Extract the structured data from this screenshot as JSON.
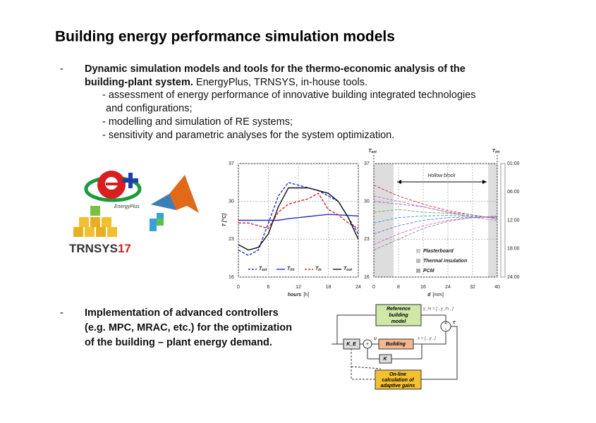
{
  "title": "Building energy performance simulation models",
  "bullet1": {
    "marker": "-",
    "line1": "Dynamic simulation models and tools for the thermo-economic analysis of the",
    "line2_bold": "building-plant system.",
    "line2_rest": " EnergyPlus, TRNSYS, in-house tools.",
    "sub": [
      "- assessment of energy performance of innovative building integrated technologies",
      "and configurations;",
      "- modelling and simulation of RE systems;",
      "- sensitivity and parametric analyses for the system optimization."
    ]
  },
  "logos": {
    "energyplus": "EnergyPlus",
    "trnsys": "TRNSYS",
    "trnsys_version": "17"
  },
  "left_chart": {
    "x_label": "hours",
    "x_unit": "[h]",
    "y_label": "T [°C]",
    "x": [
      0,
      2,
      4,
      6,
      8,
      10,
      12,
      14,
      16,
      18,
      20,
      22,
      24
    ],
    "xlim": [
      0,
      24
    ],
    "xticks": [
      0,
      6,
      12,
      18,
      24
    ],
    "ylim": [
      16,
      37
    ],
    "yticks": [
      16,
      23,
      30,
      37
    ],
    "series": [
      {
        "name": "T",
        "subscript": "ext",
        "color": "#2233cc",
        "dash": true,
        "values": [
          21,
          20,
          21,
          26,
          31,
          33.5,
          33,
          32.5,
          32,
          31,
          30,
          27,
          24
        ]
      },
      {
        "name": "T",
        "subscript": "int",
        "color": "#2233cc",
        "dash": false,
        "values": [
          26.5,
          26.5,
          26.5,
          26.5,
          26.5,
          26.8,
          27,
          27.2,
          27.4,
          27.6,
          27.5,
          27.4,
          27.3
        ]
      },
      {
        "name": "T",
        "subscript": "in",
        "color": "#dd2222",
        "dash": true,
        "values": [
          26,
          26,
          25.5,
          25,
          28,
          29.5,
          30,
          30.5,
          31.5,
          28.5,
          27.5,
          26,
          25
        ]
      },
      {
        "name": "T",
        "subscript": "out",
        "color": "#111111",
        "dash": false,
        "values": [
          22,
          21,
          21.5,
          24,
          29,
          32.5,
          32.5,
          32.5,
          32,
          31.5,
          30,
          27,
          23
        ]
      }
    ]
  },
  "right_chart": {
    "x_label": "d",
    "x_unit": "[mm]",
    "left_label": {
      "name": "T",
      "subscript": "ext"
    },
    "right_label": {
      "name": "T",
      "subscript": "int"
    },
    "annotation": "Hollow block",
    "x": [
      0,
      8,
      16,
      24,
      32,
      40
    ],
    "xlim": [
      0,
      40
    ],
    "xticks": [
      0,
      8,
      16,
      24,
      32,
      40
    ],
    "ylim": [
      16,
      37
    ],
    "yticks": [
      16,
      23,
      30,
      37
    ],
    "time_labels": [
      "01:00",
      "06:00",
      "12:00",
      "18:00",
      "24:00"
    ],
    "legend": [
      "Plasterboard",
      "Thermal insulation",
      "PCM"
    ],
    "series": [
      {
        "color": "#cc3333",
        "values": [
          33,
          31,
          29.5,
          28.3,
          27.5,
          26.8
        ]
      },
      {
        "color": "#dd66aa",
        "values": [
          31,
          30,
          29,
          28,
          27,
          26.5
        ]
      },
      {
        "color": "#9966cc",
        "values": [
          30,
          29.5,
          29,
          28,
          27.5,
          26.8
        ]
      },
      {
        "color": "#66aa66",
        "values": [
          28,
          28.5,
          28,
          27.8,
          27.3,
          27
        ]
      },
      {
        "color": "#3399cc",
        "values": [
          26,
          27,
          27.3,
          27.4,
          27.2,
          27
        ]
      },
      {
        "color": "#6677dd",
        "values": [
          24,
          25.5,
          26.5,
          27,
          27,
          27.1
        ]
      },
      {
        "color": "#cc66cc",
        "values": [
          22,
          24,
          25.5,
          26.5,
          27,
          27.2
        ]
      },
      {
        "color": "#888888",
        "values": [
          21,
          23,
          25,
          26.3,
          27,
          27.3
        ]
      }
    ]
  },
  "bullet2": {
    "marker": "-",
    "lines": [
      "Implementation of advanced controllers",
      "(e.g. MPC, MRAC, etc.) for the optimization",
      "of the building – plant energy demand."
    ]
  },
  "diagram": {
    "reference": [
      "Reference",
      "building",
      "model"
    ],
    "ym": "y_m = [...y_m...]",
    "ke": "K_E",
    "u": "u",
    "building": "Building",
    "x": "x = [...y...]",
    "k": "K",
    "e": "e",
    "plus": "+",
    "minus": "-",
    "adaptive": [
      "On-line",
      "calculation of",
      "adaptive gains"
    ]
  }
}
